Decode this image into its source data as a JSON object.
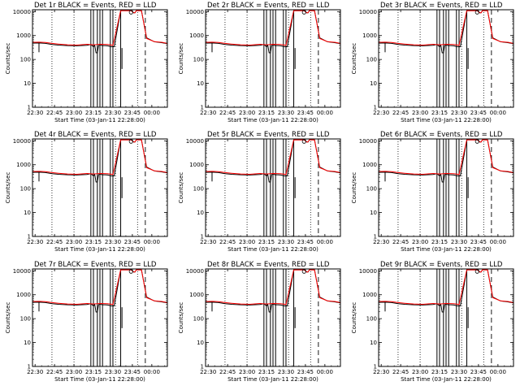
{
  "figure": {
    "panel_titles": [
      "Det 1r BLACK = Events, RED = LLD",
      "Det 2r BLACK = Events, RED = LLD",
      "Det 3r BLACK = Events, RED = LLD",
      "Det 4r BLACK = Events, RED = LLD",
      "Det 5r BLACK = Events, RED = LLD",
      "Det 6r BLACK = Events, RED = LLD",
      "Det 7r BLACK = Events, RED = LLD",
      "Det 8r BLACK = Events, RED = LLD",
      "Det 9r BLACK = Events, RED = LLD"
    ],
    "xlabel": "Start Time (03-Jan-11 22:28:00)",
    "ylabel": "Counts/sec"
  },
  "chart_data": {
    "type": "line",
    "xlabel": "Start Time (03-Jan-11 22:28:00)",
    "ylabel": "Counts/sec",
    "xlim": [
      "22:28",
      "00:12"
    ],
    "x_unit": "minutes after 22:00 on 03-Jan-11",
    "xlim_minutes": [
      28,
      132
    ],
    "ylim": [
      1,
      12000
    ],
    "y_scale": "log",
    "x_tick_labels": [
      "22:30",
      "22:45",
      "23:00",
      "23:15",
      "23:30",
      "23:45",
      "00:00"
    ],
    "x_tick_minutes": [
      30,
      45,
      60,
      75,
      90,
      105,
      120
    ],
    "y_tick_labels": [
      "1",
      "10",
      "100",
      "1000",
      "10000"
    ],
    "y_tick_values": [
      1,
      10,
      100,
      1000,
      10000
    ],
    "vertical_markers": {
      "dotted_minutes": [
        43,
        60,
        92,
        109
      ],
      "dashed_minutes": [
        115
      ]
    },
    "colors": {
      "events": "#000000",
      "lld": "#ff0000"
    },
    "panels": 9,
    "series": [
      {
        "name": "Events",
        "x": [
          28,
          33,
          38,
          43,
          48,
          55,
          62,
          70,
          73,
          75,
          76,
          77,
          78,
          79,
          80,
          81,
          82,
          84,
          86,
          88,
          90,
          91,
          96,
          97,
          100,
          104,
          106,
          107,
          108,
          109,
          112,
          116,
          122,
          128,
          132
        ],
        "y": [
          480,
          490,
          470,
          420,
          400,
          380,
          370,
          390,
          420,
          340,
          390,
          190,
          190,
          390,
          400,
          390,
          380,
          380,
          370,
          350,
          340,
          340,
          11000,
          11000,
          11000,
          11000,
          9000,
          9000,
          11000,
          11000,
          11000,
          800,
          550,
          500,
          460
        ]
      },
      {
        "name": "LLD",
        "x": [
          28,
          33,
          38,
          43,
          48,
          55,
          62,
          70,
          75,
          80,
          86,
          90,
          96,
          97,
          104,
          106,
          107,
          108,
          109,
          112,
          116,
          122,
          128,
          132
        ],
        "y": [
          520,
          530,
          510,
          470,
          440,
          410,
          400,
          430,
          410,
          430,
          420,
          390,
          11000,
          11000,
          11000,
          9000,
          9000,
          11000,
          11000,
          11000,
          750,
          560,
          520,
          470
        ]
      }
    ],
    "gaps": [
      {
        "x": 33,
        "y": [
          200,
          480
        ]
      },
      {
        "x": 73,
        "y": [
          1,
          12000
        ]
      },
      {
        "x": 75,
        "y": [
          1,
          12000
        ]
      },
      {
        "x": 78,
        "y": [
          1,
          12000
        ]
      },
      {
        "x": 80,
        "y": [
          1,
          12000
        ]
      },
      {
        "x": 82,
        "y": [
          1,
          12000
        ]
      },
      {
        "x": 88,
        "y": [
          1,
          12000
        ]
      },
      {
        "x": 90,
        "y": [
          1,
          12000
        ]
      },
      {
        "x": 96,
        "y": [
          1,
          12000
        ]
      },
      {
        "x": 97,
        "y": [
          40,
          300
        ]
      }
    ]
  }
}
